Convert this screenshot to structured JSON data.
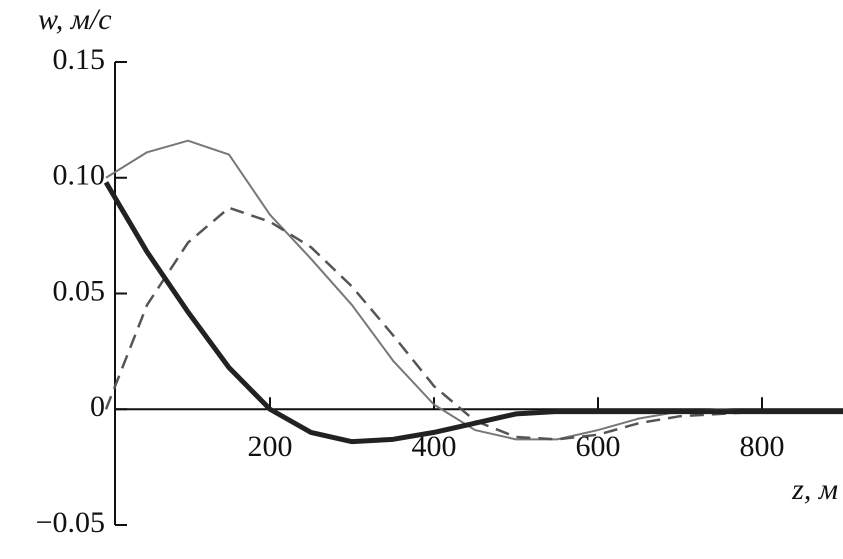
{
  "chart_data": {
    "type": "line",
    "y_label": "w, м/с",
    "x_label": "z, м",
    "x": [
      0,
      50,
      100,
      150,
      200,
      250,
      300,
      350,
      400,
      450,
      500,
      550,
      600,
      650,
      700,
      750,
      800,
      850,
      900
    ],
    "series": [
      {
        "color": "#777777",
        "style": "solid",
        "width": 2,
        "values": [
          0.1,
          0.111,
          0.116,
          0.11,
          0.084,
          0.065,
          0.045,
          0.021,
          0.002,
          -0.009,
          -0.013,
          -0.013,
          -0.009,
          -0.004,
          -0.001,
          0,
          -0.001,
          -0.001,
          -0.001
        ]
      },
      {
        "color": "#555555",
        "style": "dashed",
        "width": 2.5,
        "values": [
          0,
          0.045,
          0.072,
          0.087,
          0.081,
          0.07,
          0.053,
          0.032,
          0.01,
          -0.005,
          -0.012,
          -0.013,
          -0.011,
          -0.006,
          -0.003,
          -0.002,
          -0.001,
          -0.001,
          -0.001
        ]
      },
      {
        "color": "#222222",
        "style": "solid",
        "width": 5,
        "values": [
          0.098,
          0.068,
          0.042,
          0.018,
          0,
          -0.01,
          -0.014,
          -0.013,
          -0.01,
          -0.006,
          -0.002,
          -0.001,
          -0.001,
          -0.001,
          -0.001,
          -0.001,
          -0.001,
          -0.001,
          -0.001
        ]
      }
    ],
    "xlim": [
      0,
      900
    ],
    "ylim": [
      -0.05,
      0.15
    ],
    "xticks": [
      200,
      400,
      600,
      800
    ],
    "yticks": [
      0.15,
      {
        "value": 0.1,
        "label": "0.10"
      },
      0.05,
      0,
      {
        "value": -0.05,
        "label": "−0.05"
      }
    ]
  }
}
